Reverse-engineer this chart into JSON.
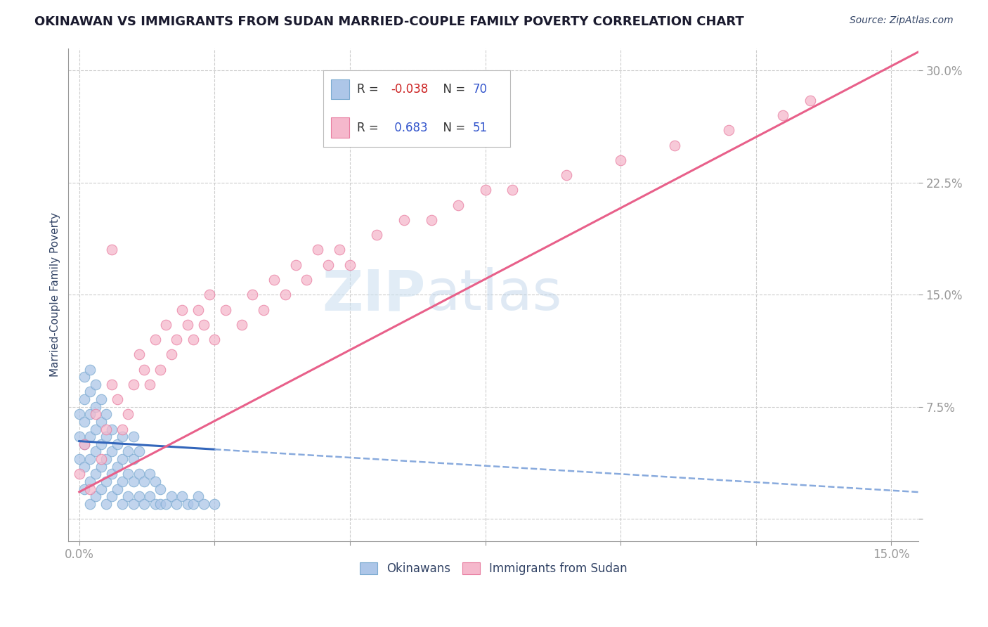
{
  "title": "OKINAWAN VS IMMIGRANTS FROM SUDAN MARRIED-COUPLE FAMILY POVERTY CORRELATION CHART",
  "source": "Source: ZipAtlas.com",
  "ylabel": "Married-Couple Family Poverty",
  "xlim": [
    -0.002,
    0.155
  ],
  "ylim": [
    -0.015,
    0.315
  ],
  "xticks": [
    0.0,
    0.025,
    0.05,
    0.075,
    0.1,
    0.125,
    0.15
  ],
  "xticklabels": [
    "0.0%",
    "",
    "",
    "",
    "",
    "",
    "15.0%"
  ],
  "yticks": [
    0.0,
    0.075,
    0.15,
    0.225,
    0.3
  ],
  "yticklabels": [
    "",
    "7.5%",
    "15.0%",
    "22.5%",
    "30.0%"
  ],
  "grid_color": "#cccccc",
  "bg_color": "#ffffff",
  "okinawan_color": "#adc6e8",
  "okinawan_edge": "#7aaad0",
  "sudan_color": "#f5b8cc",
  "sudan_edge": "#e87da0",
  "r_okinawan": -0.038,
  "n_okinawan": 70,
  "r_sudan": 0.683,
  "n_sudan": 51,
  "legend_label_1": "Okinawans",
  "legend_label_2": "Immigrants from Sudan",
  "watermark_zip": "ZIP",
  "watermark_atlas": "atlas",
  "okinawan_scatter_x": [
    0.0,
    0.0,
    0.0,
    0.001,
    0.001,
    0.001,
    0.001,
    0.001,
    0.001,
    0.002,
    0.002,
    0.002,
    0.002,
    0.002,
    0.002,
    0.002,
    0.003,
    0.003,
    0.003,
    0.003,
    0.003,
    0.003,
    0.004,
    0.004,
    0.004,
    0.004,
    0.004,
    0.005,
    0.005,
    0.005,
    0.005,
    0.005,
    0.006,
    0.006,
    0.006,
    0.006,
    0.007,
    0.007,
    0.007,
    0.008,
    0.008,
    0.008,
    0.008,
    0.009,
    0.009,
    0.009,
    0.01,
    0.01,
    0.01,
    0.01,
    0.011,
    0.011,
    0.011,
    0.012,
    0.012,
    0.013,
    0.013,
    0.014,
    0.014,
    0.015,
    0.015,
    0.016,
    0.017,
    0.018,
    0.019,
    0.02,
    0.021,
    0.022,
    0.023,
    0.025
  ],
  "okinawan_scatter_y": [
    0.04,
    0.055,
    0.07,
    0.02,
    0.035,
    0.05,
    0.065,
    0.08,
    0.095,
    0.01,
    0.025,
    0.04,
    0.055,
    0.07,
    0.085,
    0.1,
    0.015,
    0.03,
    0.045,
    0.06,
    0.075,
    0.09,
    0.02,
    0.035,
    0.05,
    0.065,
    0.08,
    0.01,
    0.025,
    0.04,
    0.055,
    0.07,
    0.015,
    0.03,
    0.045,
    0.06,
    0.02,
    0.035,
    0.05,
    0.01,
    0.025,
    0.04,
    0.055,
    0.015,
    0.03,
    0.045,
    0.01,
    0.025,
    0.04,
    0.055,
    0.015,
    0.03,
    0.045,
    0.01,
    0.025,
    0.015,
    0.03,
    0.01,
    0.025,
    0.01,
    0.02,
    0.01,
    0.015,
    0.01,
    0.015,
    0.01,
    0.01,
    0.015,
    0.01,
    0.01
  ],
  "sudan_scatter_x": [
    0.0,
    0.001,
    0.002,
    0.003,
    0.004,
    0.005,
    0.006,
    0.006,
    0.007,
    0.008,
    0.009,
    0.01,
    0.011,
    0.012,
    0.013,
    0.014,
    0.015,
    0.016,
    0.017,
    0.018,
    0.019,
    0.02,
    0.021,
    0.022,
    0.023,
    0.024,
    0.025,
    0.027,
    0.03,
    0.032,
    0.034,
    0.036,
    0.038,
    0.04,
    0.042,
    0.044,
    0.046,
    0.048,
    0.05,
    0.055,
    0.06,
    0.065,
    0.07,
    0.075,
    0.08,
    0.09,
    0.1,
    0.11,
    0.12,
    0.13,
    0.135
  ],
  "sudan_scatter_y": [
    0.03,
    0.05,
    0.02,
    0.07,
    0.04,
    0.06,
    0.09,
    0.18,
    0.08,
    0.06,
    0.07,
    0.09,
    0.11,
    0.1,
    0.09,
    0.12,
    0.1,
    0.13,
    0.11,
    0.12,
    0.14,
    0.13,
    0.12,
    0.14,
    0.13,
    0.15,
    0.12,
    0.14,
    0.13,
    0.15,
    0.14,
    0.16,
    0.15,
    0.17,
    0.16,
    0.18,
    0.17,
    0.18,
    0.17,
    0.19,
    0.2,
    0.2,
    0.21,
    0.22,
    0.22,
    0.23,
    0.24,
    0.25,
    0.26,
    0.27,
    0.28
  ],
  "ok_line_x0": 0.0,
  "ok_line_x1": 0.025,
  "ok_line_x_dashed_end": 0.155,
  "ok_line_intercept": 0.052,
  "ok_line_slope": -0.22,
  "su_line_x0": 0.0,
  "su_line_x1": 0.155,
  "su_line_intercept": 0.018,
  "su_line_slope": 1.9
}
